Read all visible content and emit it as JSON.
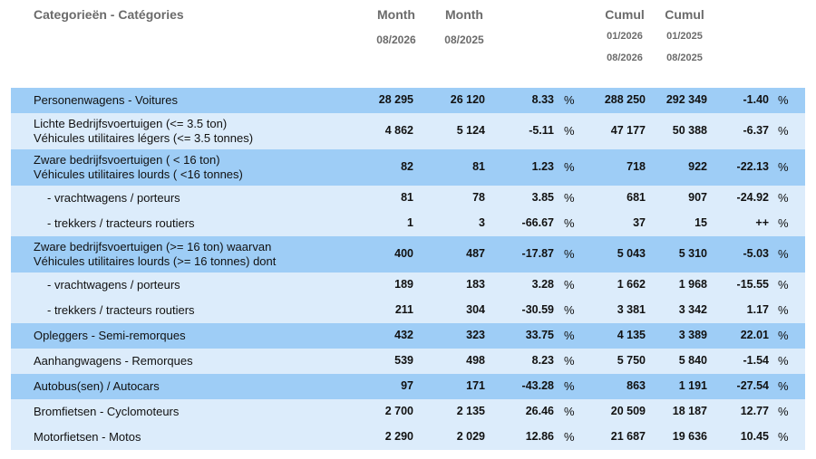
{
  "header": {
    "title": "Categorieën - Catégories",
    "columns": [
      {
        "label": "Month",
        "period": [
          "08/2026"
        ]
      },
      {
        "label": "Month",
        "period": [
          "08/2025"
        ]
      },
      {
        "label": "Cumul",
        "period": [
          "01/2026",
          "08/2026"
        ]
      },
      {
        "label": "Cumul",
        "period": [
          "01/2025",
          "08/2025"
        ]
      }
    ]
  },
  "table": {
    "rows": [
      {
        "label": [
          "Personenwagens - Voitures"
        ],
        "color": "#9ecdf6",
        "cells": [
          "28 295",
          "26 120",
          "8.33",
          "%",
          "288 250",
          "292 349",
          "-1.40",
          "%"
        ]
      },
      {
        "label": [
          "Lichte Bedrijfsvoertuigen (<= 3.5 ton)",
          "Véhicules utilitaires légers (<= 3.5 tonnes)"
        ],
        "color": "#dcecfb",
        "cells": [
          "4 862",
          "5 124",
          "-5.11",
          "%",
          "47 177",
          "50 388",
          "-6.37",
          "%"
        ]
      },
      {
        "label": [
          "Zware bedrijfsvoertuigen ( < 16 ton)",
          "Véhicules utilitaires lourds ( <16 tonnes)"
        ],
        "color": "#9ecdf6",
        "cells": [
          "82",
          "81",
          "1.23",
          "%",
          "718",
          "922",
          "-22.13",
          "%"
        ]
      },
      {
        "label": [
          "- vrachtwagens / porteurs"
        ],
        "color": "#dcecfb",
        "cells": [
          "81",
          "78",
          "3.85",
          "%",
          "681",
          "907",
          "-24.92",
          "%"
        ]
      },
      {
        "label": [
          "- trekkers / tracteurs routiers"
        ],
        "color": "#dcecfb",
        "cells": [
          "1",
          "3",
          "-66.67",
          "%",
          "37",
          "15",
          "++",
          "%"
        ]
      },
      {
        "label": [
          "Zware bedrijfsvoertuigen (>= 16 ton) waarvan",
          "Véhicules utilitaires lourds (>= 16 tonnes) dont"
        ],
        "color": "#9ecdf6",
        "cells": [
          "400",
          "487",
          "-17.87",
          "%",
          "5 043",
          "5 310",
          "-5.03",
          "%"
        ]
      },
      {
        "label": [
          "- vrachtwagens / porteurs"
        ],
        "color": "#dcecfb",
        "cells": [
          "189",
          "183",
          "3.28",
          "%",
          "1 662",
          "1 968",
          "-15.55",
          "%"
        ]
      },
      {
        "label": [
          "- trekkers / tracteurs routiers"
        ],
        "color": "#dcecfb",
        "cells": [
          "211",
          "304",
          "-30.59",
          "%",
          "3 381",
          "3 342",
          "1.17",
          "%"
        ]
      },
      {
        "label": [
          "Opleggers - Semi-remorques"
        ],
        "color": "#9ecdf6",
        "cells": [
          "432",
          "323",
          "33.75",
          "%",
          "4 135",
          "3 389",
          "22.01",
          "%"
        ]
      },
      {
        "label": [
          "Aanhangwagens - Remorques"
        ],
        "color": "#dcecfb",
        "cells": [
          "539",
          "498",
          "8.23",
          "%",
          "5 750",
          "5 840",
          "-1.54",
          "%"
        ]
      },
      {
        "label": [
          "Autobus(sen) / Autocars"
        ],
        "color": "#9ecdf6",
        "cells": [
          "97",
          "171",
          "-43.28",
          "%",
          "863",
          "1 191",
          "-27.54",
          "%"
        ]
      },
      {
        "label": [
          "Bromfietsen - Cyclomoteurs"
        ],
        "color": "#dcecfb",
        "cells": [
          "2 700",
          "2 135",
          "26.46",
          "%",
          "20 509",
          "18 187",
          "12.77",
          "%"
        ]
      },
      {
        "label": [
          "Motorfietsen - Motos"
        ],
        "color": "#dcecfb",
        "cells": [
          "2 290",
          "2 029",
          "12.86",
          "%",
          "21 687",
          "19 636",
          "10.45",
          "%"
        ]
      }
    ]
  }
}
